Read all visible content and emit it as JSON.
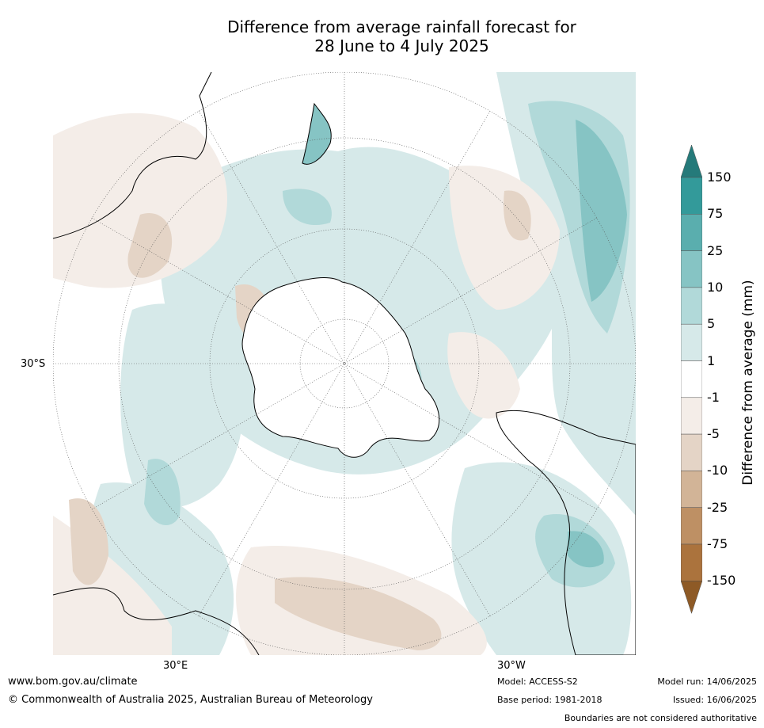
{
  "title": {
    "line1": "Difference from average rainfall forecast for",
    "line2": "28 June to 4 July 2025"
  },
  "map": {
    "projection": "south-polar stereographic",
    "labels": {
      "lon_left": "30°E",
      "lon_right": "30°W",
      "lat_left": "30°S"
    }
  },
  "colorbar": {
    "title": "Difference from average (mm)",
    "ticks": [
      "150",
      "75",
      "25",
      "10",
      "5",
      "1",
      "-1",
      "-5",
      "-10",
      "-25",
      "-75",
      "-150"
    ],
    "colors": [
      "#257a7a",
      "#339a9a",
      "#5aaeae",
      "#86c4c4",
      "#b1d9d9",
      "#d6e9e9",
      "#ffffff",
      "#f4ede8",
      "#e4d4c6",
      "#d2b497",
      "#be9064",
      "#ab733d",
      "#8e5a26"
    ]
  },
  "footer": {
    "url": "www.bom.gov.au/climate",
    "copyright": "© Commonwealth of Australia 2025, Australian Bureau of Meteorology",
    "model": "Model: ACCESS-S2",
    "base_period": "Base period: 1981-2018",
    "model_run": "Model run: 14/06/2025",
    "issued": "Issued: 16/06/2025",
    "disclaimer": "Boundaries are not considered authoritative"
  }
}
